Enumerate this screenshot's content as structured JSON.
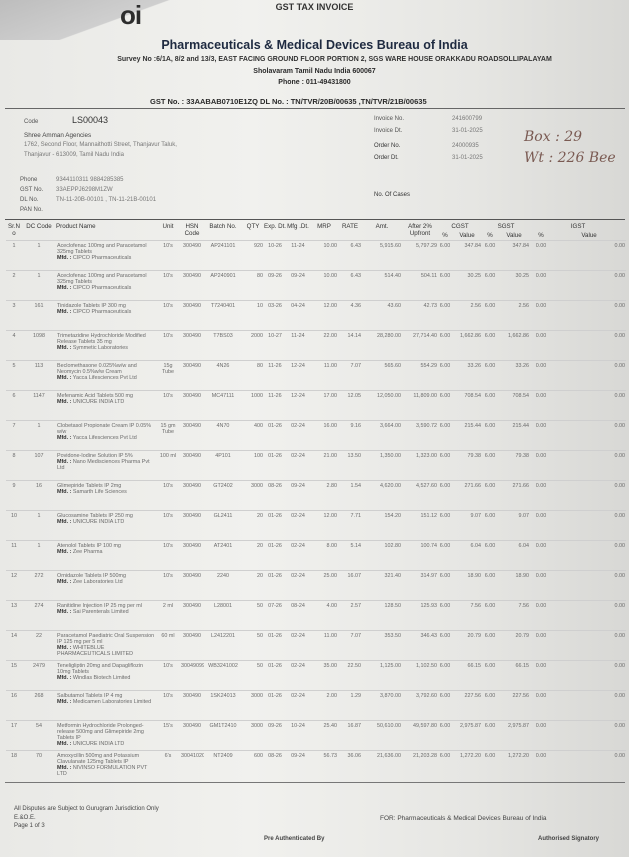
{
  "header": {
    "doc_title": "GST TAX INVOICE",
    "logo_text": "oi",
    "company": "Pharmaceuticals & Medical Devices Bureau of India",
    "address_line1": "Survey No :6/1A, 8/2 and 13/3, EAST FACING GROUND FLOOR PORTION 2, SGS WARE HOUSE ORAKKADU ROADSOLLIPALAYAM",
    "address_line2": "Sholavaram Tamil Nadu India 600067",
    "phone": "Phone : 011-49431800",
    "gst_line": "GST No. : 33AABAB0710E1ZQ  DL No. : TN/TVR/20B/00635 ,TN/TVR/21B/00635"
  },
  "buyer": {
    "code_label": "Code",
    "code": "LS00043",
    "name": "Shree Amman Agencies",
    "address1": "1762, Second Floor, Mannaithotti Street, Thanjavur Taluk,",
    "address2": "Thanjavur - 613009, Tamil Nadu India",
    "phone_label": "Phone",
    "phone": "9344110311 9884285385",
    "gst_label": "GST No.",
    "gst": "33AEPPJ6298M1ZW",
    "dl_label": "DL No.",
    "dl": "TN-11-20B-00101 , TN-11-21B-00101",
    "pan_label": "PAN No.",
    "pan": ""
  },
  "invoice": {
    "invoice_no_label": "Invoice No.",
    "invoice_no": "241600799",
    "invoice_dt_label": "Invoice Dt.",
    "invoice_dt": "31-01-2025",
    "order_no_label": "Order No.",
    "order_no": "24000935",
    "order_dt_label": "Order Dt.",
    "order_dt": "31-01-2025",
    "cases_label": "No. Of Cases",
    "cases": ""
  },
  "handwritten": {
    "line1": "Box : 29",
    "line2": "Wt : 226 Bee"
  },
  "table": {
    "headers": {
      "sr": "Sr.N o",
      "dc": "DC Code",
      "product": "Product Name",
      "unit": "Unit",
      "hsn": "HSN Code",
      "batch": "Batch No.",
      "qty": "QTY",
      "exp": "Exp. Dt.",
      "mfg": "Mfg .Dt.",
      "mrp": "MRP",
      "rate": "RATE",
      "amt": "Amt.",
      "after": "After 2% Upfront",
      "cgst": "CGST",
      "sgst": "SGST",
      "igst": "IGST",
      "pct": "%",
      "value": "Value"
    },
    "mfd_prefix": "Mfd. :",
    "rows": [
      [
        "1",
        "1",
        "Aceclofenac 100mg and Paracetamol 325mg Tablets",
        "CIPCO Pharmaceuticals",
        "10's",
        "300490",
        "AP241101",
        "920",
        "10-26",
        "11-24",
        "10.00",
        "6.43",
        "5,915.60",
        "5,797.29",
        "6.00",
        "347.84",
        "6.00",
        "347.84",
        "0.00",
        "0.00"
      ],
      [
        "2",
        "1",
        "Aceclofenac 100mg and Paracetamol 325mg Tablets",
        "CIPCO Pharmaceuticals",
        "10's",
        "300490",
        "AP240901",
        "80",
        "09-26",
        "09-24",
        "10.00",
        "6.43",
        "514.40",
        "504.11",
        "6.00",
        "30.25",
        "6.00",
        "30.25",
        "0.00",
        "0.00"
      ],
      [
        "3",
        "161",
        "Tinidazole Tablets IP 300 mg",
        "CIPCO Pharmaceuticals",
        "10's",
        "300490",
        "T7240401",
        "10",
        "03-26",
        "04-24",
        "12.00",
        "4.36",
        "43.60",
        "42.73",
        "6.00",
        "2.56",
        "6.00",
        "2.56",
        "0.00",
        "0.00"
      ],
      [
        "4",
        "1098",
        "Trimetazidine Hydrochloride Modified Release Tablets 35 mg",
        "Symmetic Laboratories",
        "10's",
        "300490",
        "T7BS03",
        "2000",
        "10-27",
        "11-24",
        "22.00",
        "14.14",
        "28,280.00",
        "27,714.40",
        "6.00",
        "1,662.86",
        "6.00",
        "1,662.86",
        "0.00",
        "0.00"
      ],
      [
        "5",
        "113",
        "Beclomethasone 0.025%w/w and Neomycin 0.5%w/w Cream",
        "Yacca Lifesciences Pvt Ltd",
        "15g Tube",
        "300490",
        "4N26",
        "80",
        "11-26",
        "12-24",
        "11.00",
        "7.07",
        "565.60",
        "554.29",
        "6.00",
        "33.26",
        "6.00",
        "33.26",
        "0.00",
        "0.00"
      ],
      [
        "6",
        "1147",
        "Mefenamic Acid Tablets 500 mg",
        "UNICURE INDIA LTD",
        "10's",
        "300490",
        "MC47111",
        "1000",
        "11-26",
        "12-24",
        "17.00",
        "12.05",
        "12,050.00",
        "11,809.00",
        "6.00",
        "708.54",
        "6.00",
        "708.54",
        "0.00",
        "0.00"
      ],
      [
        "7",
        "1",
        "Clobetasol Propionate Cream IP 0.05% w/w",
        "Yacca Lifesciences Pvt Ltd",
        "15 gm Tube",
        "300490",
        "4N70",
        "400",
        "01-26",
        "02-24",
        "16.00",
        "9.16",
        "3,664.00",
        "3,590.72",
        "6.00",
        "215.44",
        "6.00",
        "215.44",
        "0.00",
        "0.00"
      ],
      [
        "8",
        "107",
        "Povidone-Iodine Solution IP 5%",
        "Nano Medisciences Pharma Pvt Ltd",
        "100 ml",
        "300490",
        "4P101",
        "100",
        "01-26",
        "02-24",
        "21.00",
        "13.50",
        "1,350.00",
        "1,323.00",
        "6.00",
        "79.38",
        "6.00",
        "79.38",
        "0.00",
        "0.00"
      ],
      [
        "9",
        "16",
        "Glimepiride Tablets IP 2mg",
        "Samarth Life Sciences",
        "10's",
        "300490",
        "GT2402",
        "3000",
        "08-26",
        "09-24",
        "2.80",
        "1.54",
        "4,620.00",
        "4,527.60",
        "6.00",
        "271.66",
        "6.00",
        "271.66",
        "0.00",
        "0.00"
      ],
      [
        "10",
        "1",
        "Glucosamine Tablets IP 250 mg",
        "UNICURE INDIA LTD",
        "10's",
        "300490",
        "GL2411",
        "20",
        "01-26",
        "02-24",
        "12.00",
        "7.71",
        "154.20",
        "151.12",
        "6.00",
        "9.07",
        "6.00",
        "9.07",
        "0.00",
        "0.00"
      ],
      [
        "11",
        "1",
        "Atenolol Tablets IP 100 mg",
        "Zee Pharma",
        "10's",
        "300490",
        "AT2401",
        "20",
        "01-26",
        "02-24",
        "8.00",
        "5.14",
        "102.80",
        "100.74",
        "6.00",
        "6.04",
        "6.00",
        "6.04",
        "0.00",
        "0.00"
      ],
      [
        "12",
        "272",
        "Ornidazole Tablets IP 500mg",
        "Zee Laboratories Ltd",
        "10's",
        "300490",
        "2240",
        "20",
        "01-26",
        "02-24",
        "25.00",
        "16.07",
        "321.40",
        "314.97",
        "6.00",
        "18.90",
        "6.00",
        "18.90",
        "0.00",
        "0.00"
      ],
      [
        "13",
        "274",
        "Ranitidine Injection IP 25 mg per ml",
        "Sai Parenterals Limited",
        "2 ml",
        "300490",
        "L28001",
        "50",
        "07-26",
        "08-24",
        "4.00",
        "2.57",
        "128.50",
        "125.93",
        "6.00",
        "7.56",
        "6.00",
        "7.56",
        "0.00",
        "0.00"
      ],
      [
        "14",
        "22",
        "Paracetamol Paediatric Oral Suspension IP 125 mg per 5 ml",
        "WHITEBLUE PHARMACEUTICALS LIMITED",
        "60 ml",
        "300490",
        "L2412201",
        "50",
        "01-26",
        "02-24",
        "11.00",
        "7.07",
        "353.50",
        "346.43",
        "6.00",
        "20.79",
        "6.00",
        "20.79",
        "0.00",
        "0.00"
      ],
      [
        "15",
        "2479",
        "Teneligliptin 20mg and Dapagliflozin 10mg Tablets",
        "Windlas Biotech Limited",
        "10's",
        "30049099",
        "WB3241002",
        "50",
        "01-26",
        "02-24",
        "35.00",
        "22.50",
        "1,125.00",
        "1,102.50",
        "6.00",
        "66.15",
        "6.00",
        "66.15",
        "0.00",
        "0.00"
      ],
      [
        "16",
        "268",
        "Salbutamol Tablets IP 4 mg",
        "Medicamen Laboratories Limited",
        "10's",
        "300490",
        "1SK24013",
        "3000",
        "01-26",
        "02-24",
        "2.00",
        "1.29",
        "3,870.00",
        "3,792.60",
        "6.00",
        "227.56",
        "6.00",
        "227.56",
        "0.00",
        "0.00"
      ],
      [
        "17",
        "54",
        "Metformin Hydrochloride Prolonged-release 500mg and Glimepiride 2mg Tablets IP",
        "UNICURE INDIA LTD",
        "15's",
        "300490",
        "GM1T2410",
        "3000",
        "09-26",
        "10-24",
        "25.40",
        "16.87",
        "50,610.00",
        "49,597.80",
        "6.00",
        "2,975.87",
        "6.00",
        "2,975.87",
        "0.00",
        "0.00"
      ],
      [
        "18",
        "70",
        "Amoxycillin 500mg and Potassium Clavulanate 125mg Tablets IP",
        "NIVINSO FORMULATION PVT LTD",
        "6's",
        "30041020",
        "NT2409",
        "600",
        "08-26",
        "09-24",
        "56.73",
        "36.06",
        "21,636.00",
        "21,203.28",
        "6.00",
        "1,272.20",
        "6.00",
        "1,272.20",
        "0.00",
        "0.00"
      ]
    ]
  },
  "footer": {
    "jurisdiction": "All Disputes are Subject to Gurugram Jurisdiction Only",
    "eoe": "E.&O.E.",
    "page": "Page 1 of 3",
    "authenticated": "Pre Authenticated By",
    "for_company": "FOR: Pharmaceuticals & Medical Devices Bureau of India",
    "signatory": "Authorised Signatory"
  }
}
